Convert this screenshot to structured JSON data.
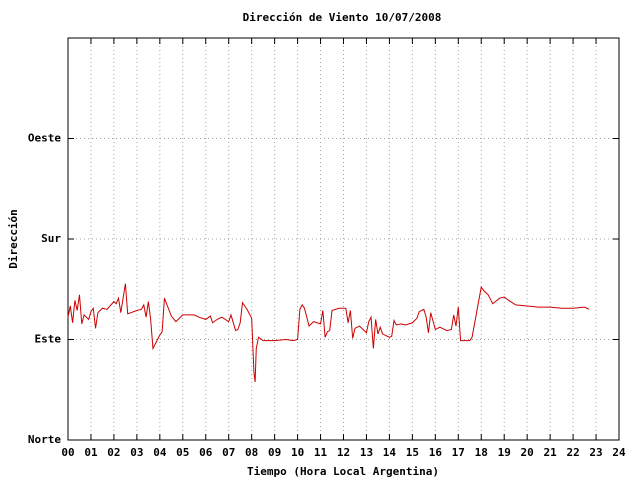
{
  "chart_data": {
    "type": "line",
    "title": "Dirección de Viento 10/07/2008",
    "x_label": "Tiempo (Hora Local Argentina)",
    "y_label": "Dirección",
    "xlim": [
      0,
      24
    ],
    "ylim": [
      0,
      360
    ],
    "xticks": [
      {
        "value": 0,
        "label": "00"
      },
      {
        "value": 1,
        "label": "01"
      },
      {
        "value": 2,
        "label": "02"
      },
      {
        "value": 3,
        "label": "03"
      },
      {
        "value": 4,
        "label": "04"
      },
      {
        "value": 5,
        "label": "05"
      },
      {
        "value": 6,
        "label": "06"
      },
      {
        "value": 7,
        "label": "07"
      },
      {
        "value": 8,
        "label": "08"
      },
      {
        "value": 9,
        "label": "09"
      },
      10,
      11,
      12,
      13,
      14,
      15,
      16,
      17,
      18,
      19,
      20,
      21,
      22,
      23,
      24
    ],
    "yticks": [
      {
        "value": 0,
        "label": "Norte"
      },
      {
        "value": 90,
        "label": "Este"
      },
      {
        "value": 180,
        "label": "Sur"
      },
      {
        "value": 270,
        "label": "Oeste"
      }
    ],
    "grid": true,
    "color": "#cc0000",
    "x": [
      0.0,
      0.1,
      0.2,
      0.3,
      0.4,
      0.5,
      0.6,
      0.7,
      0.9,
      1.0,
      1.1,
      1.2,
      1.3,
      1.5,
      1.7,
      2.0,
      2.1,
      2.2,
      2.3,
      2.5,
      2.6,
      3.0,
      3.2,
      3.3,
      3.4,
      3.5,
      3.6,
      3.7,
      4.0,
      4.1,
      4.2,
      4.5,
      4.7,
      5.0,
      5.5,
      5.7,
      6.0,
      6.2,
      6.3,
      6.5,
      6.7,
      7.0,
      7.1,
      7.3,
      7.4,
      7.5,
      7.6,
      7.8,
      8.0,
      8.1,
      8.15,
      8.2,
      8.3,
      8.5,
      9.0,
      9.5,
      9.8,
      10.0,
      10.1,
      10.2,
      10.3,
      10.5,
      10.7,
      11.0,
      11.1,
      11.2,
      11.3,
      11.4,
      11.5,
      11.8,
      12.1,
      12.2,
      12.3,
      12.4,
      12.5,
      12.7,
      13.0,
      13.1,
      13.2,
      13.3,
      13.4,
      13.5,
      13.6,
      13.7,
      14.0,
      14.1,
      14.2,
      14.3,
      14.5,
      14.7,
      15.0,
      15.2,
      15.3,
      15.5,
      15.6,
      15.7,
      15.8,
      16.0,
      16.2,
      16.3,
      16.5,
      16.7,
      16.8,
      16.9,
      17.0,
      17.1,
      17.5,
      17.6,
      18.0,
      18.1,
      18.3,
      18.5,
      18.8,
      19.0,
      19.2,
      19.5,
      20.0,
      20.5,
      21.0,
      21.5,
      22.0,
      22.5,
      22.7
    ],
    "values": [
      110,
      120,
      105,
      125,
      116,
      130,
      104,
      112,
      108,
      115,
      118,
      100,
      114,
      118,
      117,
      124,
      122,
      127,
      114,
      140,
      113,
      116,
      117,
      121,
      110,
      124,
      108,
      82,
      94,
      97,
      127,
      111,
      106,
      112,
      112,
      110,
      108,
      111,
      105,
      108,
      110,
      106,
      112,
      98,
      99,
      105,
      123,
      117,
      109,
      60,
      52,
      82,
      92,
      89,
      89,
      90,
      89,
      90,
      117,
      121,
      118,
      102,
      106,
      104,
      116,
      92,
      97,
      98,
      116,
      118,
      118,
      105,
      116,
      91,
      100,
      102,
      96,
      106,
      110,
      82,
      108,
      95,
      101,
      95,
      92,
      93,
      107,
      103,
      104,
      103,
      105,
      109,
      115,
      117,
      110,
      96,
      114,
      99,
      101,
      100,
      98,
      99,
      112,
      102,
      119,
      89,
      89,
      92,
      137,
      134,
      130,
      122,
      127,
      128,
      125,
      121,
      120,
      119,
      119,
      118,
      118,
      119,
      117
    ]
  }
}
